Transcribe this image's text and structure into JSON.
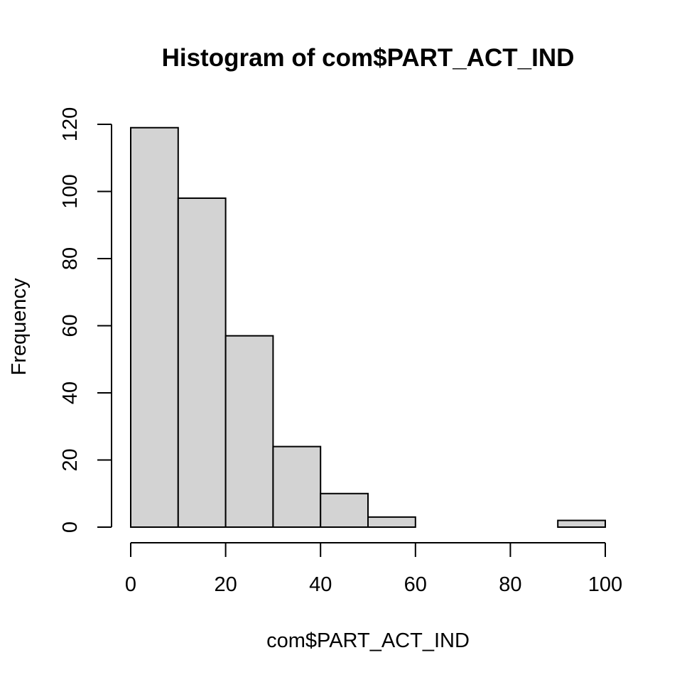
{
  "chart_data": {
    "type": "bar",
    "title": "Histogram of com$PART_ACT_IND",
    "xlabel": "com$PART_ACT_IND",
    "ylabel": "Frequency",
    "bins": [
      {
        "start": 0,
        "end": 10,
        "count": 119
      },
      {
        "start": 10,
        "end": 20,
        "count": 98
      },
      {
        "start": 20,
        "end": 30,
        "count": 57
      },
      {
        "start": 30,
        "end": 40,
        "count": 24
      },
      {
        "start": 40,
        "end": 50,
        "count": 10
      },
      {
        "start": 50,
        "end": 60,
        "count": 3
      },
      {
        "start": 60,
        "end": 70,
        "count": 0
      },
      {
        "start": 70,
        "end": 80,
        "count": 0
      },
      {
        "start": 80,
        "end": 90,
        "count": 0
      },
      {
        "start": 90,
        "end": 100,
        "count": 2
      }
    ],
    "xlim": [
      0,
      100
    ],
    "ylim": [
      0,
      120
    ],
    "x_ticks": [
      0,
      20,
      40,
      60,
      80,
      100
    ],
    "y_ticks": [
      0,
      20,
      40,
      60,
      80,
      100,
      120
    ],
    "bar_color": "#d3d3d3",
    "grid": false
  }
}
